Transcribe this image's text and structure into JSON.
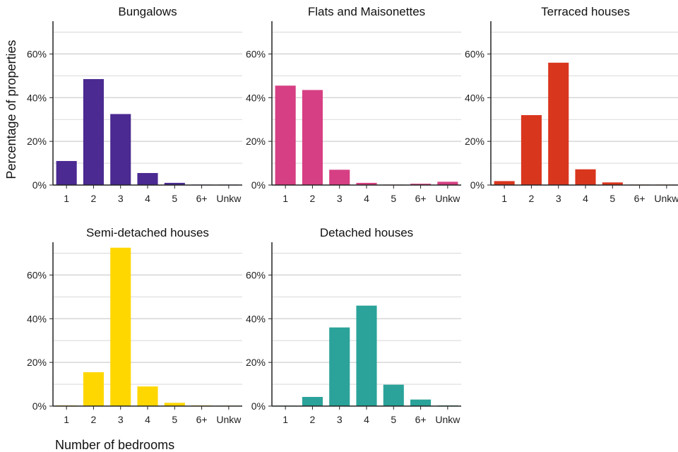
{
  "chart_data": {
    "type": "bar",
    "layout": "small-multiples",
    "ylabel": "Percentage of properties",
    "xlabel": "Number of bedrooms",
    "categories": [
      "1",
      "2",
      "3",
      "4",
      "5",
      "6+",
      "Unkw"
    ],
    "ylim": [
      0,
      75
    ],
    "yticks": [
      0,
      20,
      40,
      60
    ],
    "ytick_labels": [
      "0%",
      "20%",
      "40%",
      "60%"
    ],
    "grid": true,
    "panels": [
      {
        "name": "Bungalows",
        "color": "#4b2a91",
        "values": [
          11,
          48.5,
          32.5,
          5.5,
          1,
          0.2,
          0.1
        ]
      },
      {
        "name": "Flats and Maisonettes",
        "color": "#d63f83",
        "values": [
          45.5,
          43.5,
          7,
          1,
          0.2,
          0.6,
          1.5
        ]
      },
      {
        "name": "Terraced houses",
        "color": "#d9361e",
        "values": [
          1.8,
          32,
          56,
          7.2,
          1.2,
          0.2,
          0.1
        ]
      },
      {
        "name": "Semi-detached houses",
        "color": "#ffd700",
        "values": [
          0.3,
          15.5,
          72.5,
          9,
          1.5,
          0.3,
          0.1
        ]
      },
      {
        "name": "Detached houses",
        "color": "#2ba39a",
        "values": [
          0.2,
          4.2,
          36,
          46,
          9.8,
          3,
          0.3
        ]
      }
    ]
  }
}
